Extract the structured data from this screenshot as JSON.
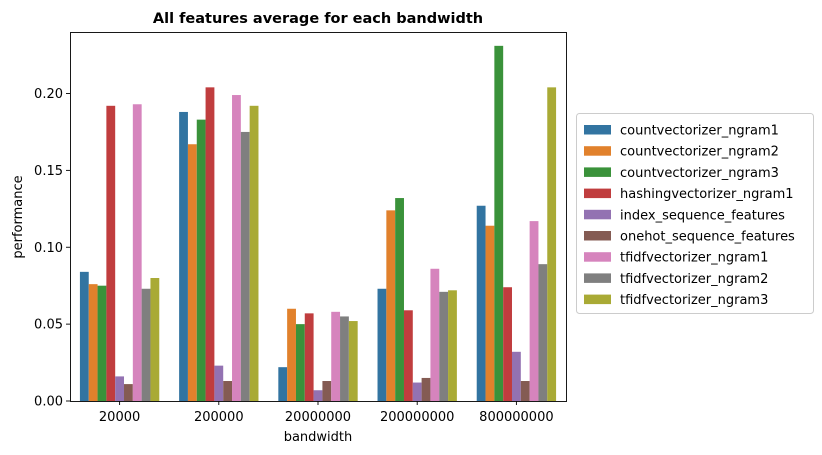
{
  "chart_data": {
    "type": "bar",
    "title": "All features average for each bandwidth",
    "xlabel": "bandwidth",
    "ylabel": "performance",
    "categories": [
      "20000",
      "200000",
      "20000000",
      "200000000",
      "800000000"
    ],
    "ylim": [
      0,
      0.24
    ],
    "yticks": [
      0.0,
      0.05,
      0.1,
      0.15,
      0.2
    ],
    "ytick_labels": [
      "0.00",
      "0.05",
      "0.10",
      "0.15",
      "0.20"
    ],
    "grid": false,
    "legend_position": "right",
    "series": [
      {
        "name": "countvectorizer_ngram1",
        "color": "#3274a1",
        "values": [
          0.084,
          0.188,
          0.022,
          0.073,
          0.127
        ]
      },
      {
        "name": "countvectorizer_ngram2",
        "color": "#e1812c",
        "values": [
          0.076,
          0.167,
          0.06,
          0.124,
          0.114
        ]
      },
      {
        "name": "countvectorizer_ngram3",
        "color": "#3a923a",
        "values": [
          0.075,
          0.183,
          0.05,
          0.132,
          0.231
        ]
      },
      {
        "name": "hashingvectorizer_ngram1",
        "color": "#c03d3e",
        "values": [
          0.192,
          0.204,
          0.057,
          0.059,
          0.074
        ]
      },
      {
        "name": "index_sequence_features",
        "color": "#9372b2",
        "values": [
          0.016,
          0.023,
          0.007,
          0.012,
          0.032
        ]
      },
      {
        "name": "onehot_sequence_features",
        "color": "#845b53",
        "values": [
          0.011,
          0.013,
          0.013,
          0.015,
          0.013
        ]
      },
      {
        "name": "tfidfvectorizer_ngram1",
        "color": "#d684bd",
        "values": [
          0.193,
          0.199,
          0.058,
          0.086,
          0.117
        ]
      },
      {
        "name": "tfidfvectorizer_ngram2",
        "color": "#7f7f7f",
        "values": [
          0.073,
          0.175,
          0.055,
          0.071,
          0.089
        ]
      },
      {
        "name": "tfidfvectorizer_ngram3",
        "color": "#a9aa35",
        "values": [
          0.08,
          0.192,
          0.052,
          0.072,
          0.204
        ]
      }
    ]
  }
}
